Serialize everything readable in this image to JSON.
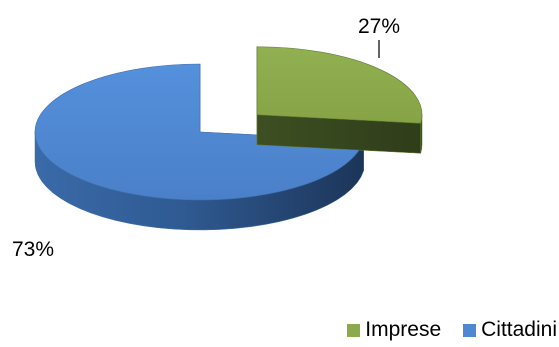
{
  "chart_data": {
    "type": "pie",
    "style": "3d-exploded",
    "categories": [
      "Imprese",
      "Cittadini"
    ],
    "values": [
      27,
      73
    ],
    "data_labels": [
      "27%",
      "73%"
    ],
    "colors": {
      "Imprese": "#8BAA4B",
      "Cittadini": "#4F87D2"
    },
    "legend": {
      "placement": "bottom-right",
      "entries": [
        "Imprese",
        "Cittadini"
      ]
    },
    "title": "",
    "xlabel": "",
    "ylabel": ""
  }
}
